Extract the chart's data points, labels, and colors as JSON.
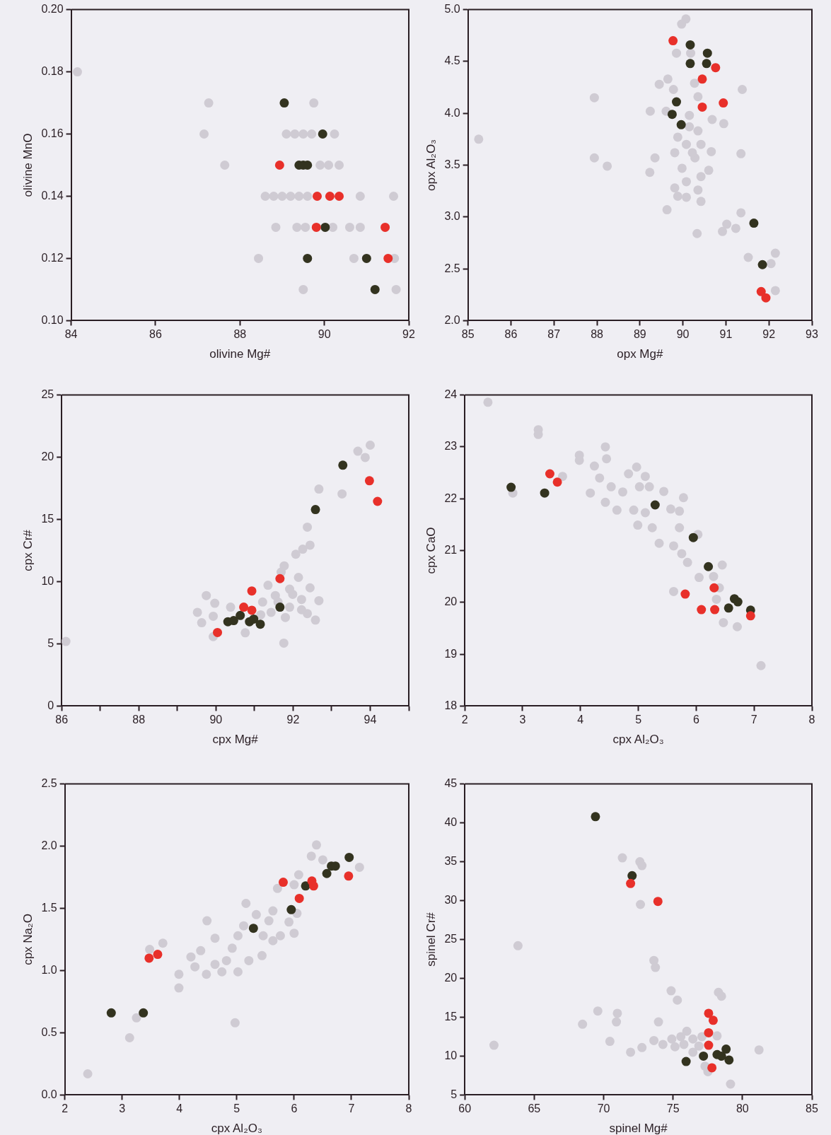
{
  "chart_data": [
    {
      "type": "scatter",
      "xlabel": "olivine Mg#",
      "ylabel": "olivine MnO",
      "xlim": [
        84,
        92
      ],
      "ylim": [
        0.1,
        0.2
      ],
      "xticks": [
        84,
        86,
        88,
        90,
        92
      ],
      "yticks": [
        {
          "value": 0.1,
          "label": "0.10"
        },
        {
          "value": 0.12,
          "label": "0.12"
        },
        {
          "value": 0.14,
          "label": "0.14"
        },
        {
          "value": 0.16,
          "label": "0.16"
        },
        {
          "value": 0.18,
          "label": "0.18"
        },
        {
          "value": 0.2,
          "label": "0.20"
        }
      ],
      "marker": "circle",
      "grid": false,
      "legend": false,
      "series": [
        {
          "color": "#cfcbd3",
          "x": [
            84.15,
            87.26,
            89.75,
            87.15,
            89.1,
            89.3,
            89.5,
            89.7,
            90.24,
            87.64,
            89.9,
            90.1,
            90.35,
            88.6,
            88.8,
            89.0,
            89.2,
            89.4,
            89.6,
            90.85,
            91.64,
            88.85,
            89.35,
            89.55,
            90.2,
            90.6,
            90.85,
            88.44,
            90.7,
            91.66,
            89.5,
            91.7
          ],
          "values": [
            0.18,
            0.17,
            0.17,
            0.16,
            0.16,
            0.16,
            0.16,
            0.16,
            0.16,
            0.15,
            0.15,
            0.15,
            0.15,
            0.14,
            0.14,
            0.14,
            0.14,
            0.14,
            0.14,
            0.14,
            0.14,
            0.13,
            0.13,
            0.13,
            0.13,
            0.13,
            0.13,
            0.12,
            0.12,
            0.12,
            0.11,
            0.11
          ]
        },
        {
          "color": "#33331f",
          "x": [
            89.05,
            89.96,
            89.4,
            89.5,
            89.6,
            90.02,
            89.6,
            91.0,
            91.2
          ],
          "values": [
            0.17,
            0.16,
            0.15,
            0.15,
            0.15,
            0.13,
            0.12,
            0.12,
            0.11
          ]
        },
        {
          "color": "#e8302a",
          "x": [
            88.94,
            89.83,
            90.13,
            90.35,
            89.81,
            91.44,
            91.51
          ],
          "values": [
            0.15,
            0.14,
            0.14,
            0.14,
            0.13,
            0.13,
            0.12
          ]
        }
      ]
    },
    {
      "type": "scatter",
      "xlabel": "opx Mg#",
      "ylabel": "opx Al₂O₃",
      "xlim": [
        85,
        93
      ],
      "ylim": [
        2,
        5
      ],
      "xticks": [
        85,
        86,
        87,
        88,
        89,
        90,
        91,
        92,
        93
      ],
      "yticks": [
        {
          "value": 2,
          "label": "2.0"
        },
        {
          "value": 2.5,
          "label": "2.5"
        },
        {
          "value": 3,
          "label": "3.0"
        },
        {
          "value": 3.5,
          "label": "3.5"
        },
        {
          "value": 4,
          "label": "4.0"
        },
        {
          "value": 4.5,
          "label": "4.5"
        },
        {
          "value": 5,
          "label": "5.0"
        }
      ],
      "marker": "circle",
      "grid": false,
      "legend": false,
      "series": [
        {
          "color": "#cfcbd3",
          "x": [
            90.07,
            89.97,
            89.85,
            90.18,
            89.65,
            89.45,
            89.78,
            90.27,
            91.38,
            87.94,
            90.35,
            89.24,
            89.61,
            90.15,
            90.68,
            90.95,
            89.88,
            90.35,
            85.25,
            90.08,
            90.42,
            89.81,
            90.66,
            91.35,
            90.28,
            87.94,
            89.35,
            88.24,
            89.98,
            90.6,
            89.23,
            90.42,
            90.08,
            89.81,
            90.35,
            89.88,
            90.08,
            90.42,
            89.63,
            91.35,
            91.02,
            91.23,
            90.92,
            90.33,
            91.52,
            92.15,
            92.05,
            92.15,
            90.22,
            90.15
          ],
          "values": [
            4.91,
            4.86,
            4.58,
            4.58,
            4.33,
            4.28,
            4.23,
            4.29,
            4.23,
            4.15,
            4.16,
            4.02,
            4.02,
            3.98,
            3.94,
            3.9,
            3.77,
            3.83,
            3.75,
            3.7,
            3.7,
            3.62,
            3.63,
            3.61,
            3.57,
            3.57,
            3.57,
            3.49,
            3.47,
            3.45,
            3.43,
            3.39,
            3.34,
            3.28,
            3.26,
            3.2,
            3.19,
            3.15,
            3.07,
            3.04,
            2.93,
            2.89,
            2.86,
            2.84,
            2.61,
            2.65,
            2.55,
            2.29,
            3.62,
            3.87
          ]
        },
        {
          "color": "#33331f",
          "x": [
            90.17,
            90.57,
            90.17,
            90.55,
            89.85,
            89.75,
            89.96,
            91.65,
            91.85
          ],
          "values": [
            4.66,
            4.58,
            4.48,
            4.48,
            4.11,
            3.99,
            3.89,
            2.94,
            2.54
          ]
        },
        {
          "color": "#e8302a",
          "x": [
            89.77,
            90.76,
            90.45,
            90.45,
            90.94,
            91.82,
            91.93
          ],
          "values": [
            4.7,
            4.44,
            4.33,
            4.06,
            4.1,
            2.28,
            2.22
          ]
        }
      ]
    },
    {
      "type": "scatter",
      "xlabel": "cpx Mg#",
      "ylabel": "cpx Cr#",
      "xlim": [
        86,
        95
      ],
      "ylim": [
        0,
        25
      ],
      "xticks": [
        86,
        {
          "value": 87,
          "label": null
        },
        88,
        {
          "value": 89,
          "label": null
        },
        90,
        {
          "value": 91,
          "label": null
        },
        92,
        {
          "value": 93,
          "label": null
        },
        94,
        {
          "value": 95,
          "label": null
        }
      ],
      "yticks": [
        0,
        5,
        10,
        15,
        20,
        25
      ],
      "marker": "circle",
      "grid": false,
      "legend": false,
      "series": [
        {
          "color": "#cfcbd3",
          "x": [
            86.11,
            94.0,
            93.68,
            93.87,
            93.27,
            92.67,
            92.37,
            92.44,
            92.25,
            92.07,
            91.77,
            91.69,
            92.14,
            91.35,
            91.91,
            92.44,
            91.54,
            91.99,
            92.22,
            92.67,
            89.75,
            89.97,
            89.52,
            89.93,
            89.63,
            90.38,
            91.21,
            91.43,
            91.8,
            92.58,
            92.37,
            90.76,
            89.93,
            91.76,
            91.91,
            92.22,
            91.61,
            91.16
          ],
          "values": [
            5.19,
            20.97,
            20.48,
            19.98,
            17.05,
            17.44,
            14.38,
            12.93,
            12.61,
            12.2,
            11.27,
            10.76,
            10.34,
            9.71,
            9.4,
            9.5,
            8.88,
            8.98,
            8.57,
            8.47,
            8.88,
            8.26,
            7.53,
            7.22,
            6.7,
            7.95,
            8.36,
            7.53,
            7.12,
            6.91,
            7.43,
            5.89,
            5.58,
            5.06,
            7.95,
            7.74,
            8.36,
            7.33
          ]
        },
        {
          "color": "#33331f",
          "x": [
            93.29,
            92.58,
            91.66,
            90.31,
            90.46,
            90.63,
            90.87,
            90.98,
            91.15
          ],
          "values": [
            19.36,
            15.79,
            7.95,
            6.78,
            6.87,
            7.28,
            6.78,
            6.99,
            6.58
          ]
        },
        {
          "color": "#e8302a",
          "x": [
            93.98,
            94.19,
            91.66,
            90.93,
            90.72,
            90.93,
            90.04
          ],
          "values": [
            18.11,
            16.45,
            10.24,
            9.25,
            7.95,
            7.7,
            5.91
          ]
        }
      ]
    },
    {
      "type": "scatter",
      "xlabel": "cpx Al₂O₃",
      "ylabel": "cpx CaO",
      "xlim": [
        2,
        8
      ],
      "ylim": [
        18,
        24
      ],
      "xticks": [
        2,
        3,
        4,
        5,
        6,
        7,
        8
      ],
      "yticks": [
        18,
        19,
        20,
        21,
        22,
        23,
        24
      ],
      "marker": "circle",
      "grid": false,
      "legend": false,
      "series": [
        {
          "color": "#cfcbd3",
          "x": [
            2.4,
            3.27,
            3.27,
            4.43,
            3.98,
            3.98,
            4.45,
            4.24,
            4.97,
            3.69,
            2.83,
            4.17,
            4.33,
            5.12,
            4.83,
            4.53,
            4.73,
            5.02,
            5.19,
            5.44,
            5.78,
            4.43,
            4.63,
            4.92,
            5.12,
            5.56,
            5.71,
            4.99,
            5.24,
            5.71,
            5.36,
            5.61,
            5.75,
            6.03,
            5.85,
            6.45,
            6.05,
            6.3,
            5.61,
            6.4,
            6.35,
            6.47,
            6.71,
            7.12
          ],
          "values": [
            23.86,
            23.33,
            23.24,
            23.0,
            22.84,
            22.74,
            22.77,
            22.63,
            22.61,
            22.43,
            22.11,
            22.11,
            22.4,
            22.43,
            22.48,
            22.23,
            22.13,
            22.23,
            22.23,
            22.14,
            22.02,
            21.93,
            21.78,
            21.78,
            21.73,
            21.8,
            21.76,
            21.49,
            21.44,
            21.44,
            21.14,
            21.09,
            20.94,
            21.31,
            20.77,
            20.72,
            20.48,
            20.5,
            20.21,
            20.28,
            20.06,
            19.61,
            19.53,
            18.78
          ]
        },
        {
          "color": "#33331f",
          "x": [
            2.8,
            3.38,
            5.29,
            5.95,
            6.21,
            6.66,
            6.72,
            6.56,
            6.94
          ],
          "values": [
            22.22,
            22.11,
            21.88,
            21.25,
            20.69,
            20.07,
            20.01,
            19.89,
            19.85
          ]
        },
        {
          "color": "#e8302a",
          "x": [
            3.47,
            3.6,
            5.81,
            6.31,
            6.09,
            6.32,
            6.94
          ],
          "values": [
            22.48,
            22.32,
            20.16,
            20.28,
            19.86,
            19.86,
            19.74
          ]
        }
      ]
    },
    {
      "type": "scatter",
      "xlabel": "cpx Al₂O₃",
      "ylabel": "cpx Na₂O",
      "xlim": [
        2,
        8
      ],
      "ylim": [
        0,
        2.5
      ],
      "xticks": [
        2,
        3,
        4,
        5,
        6,
        7,
        8
      ],
      "yticks": [
        {
          "value": 0,
          "label": "0.0"
        },
        {
          "value": 0.5,
          "label": "0.5"
        },
        {
          "value": 1,
          "label": "1.0"
        },
        {
          "value": 1.5,
          "label": "1.5"
        },
        {
          "value": 2,
          "label": "2.0"
        },
        {
          "value": 2.5,
          "label": "2.5"
        }
      ],
      "marker": "circle",
      "grid": false,
      "legend": false,
      "series": [
        {
          "color": "#cfcbd3",
          "x": [
            2.4,
            3.13,
            3.25,
            3.71,
            3.48,
            3.99,
            3.99,
            4.48,
            4.62,
            4.2,
            4.37,
            4.27,
            4.47,
            4.62,
            4.82,
            4.74,
            4.92,
            5.02,
            5.12,
            5.16,
            5.02,
            5.21,
            5.34,
            5.46,
            5.56,
            5.44,
            5.63,
            5.76,
            5.63,
            6.0,
            4.97,
            5.71,
            6.0,
            6.08,
            6.39,
            6.3,
            6.5,
            7.14,
            5.91,
            6.05
          ],
          "values": [
            0.17,
            0.46,
            0.62,
            1.22,
            1.17,
            0.97,
            0.86,
            1.4,
            1.26,
            1.11,
            1.16,
            1.03,
            0.97,
            1.05,
            1.08,
            0.99,
            1.18,
            1.28,
            1.36,
            1.54,
            0.99,
            1.08,
            1.45,
            1.28,
            1.4,
            1.12,
            1.24,
            1.28,
            1.48,
            1.3,
            0.58,
            1.66,
            1.69,
            1.77,
            2.01,
            1.92,
            1.89,
            1.83,
            1.39,
            1.46
          ]
        },
        {
          "color": "#33331f",
          "x": [
            2.81,
            3.37,
            5.29,
            5.95,
            6.2,
            6.57,
            6.65,
            6.72,
            6.96
          ],
          "values": [
            0.66,
            0.66,
            1.34,
            1.49,
            1.68,
            1.78,
            1.84,
            1.84,
            1.91
          ]
        },
        {
          "color": "#e8302a",
          "x": [
            3.47,
            3.62,
            5.81,
            6.09,
            6.31,
            6.34,
            6.95
          ],
          "values": [
            1.1,
            1.13,
            1.71,
            1.58,
            1.72,
            1.68,
            1.76
          ]
        }
      ]
    },
    {
      "type": "scatter",
      "xlabel": "spinel Mg#",
      "ylabel": "spinel Cr#",
      "xlim": [
        60,
        85
      ],
      "ylim": [
        5,
        45
      ],
      "xticks": [
        60,
        65,
        70,
        75,
        80,
        85
      ],
      "yticks": [
        5,
        10,
        15,
        20,
        25,
        30,
        35,
        40,
        45
      ],
      "marker": "circle",
      "grid": false,
      "legend": false,
      "series": [
        {
          "color": "#cfcbd3",
          "x": [
            71.35,
            72.61,
            72.76,
            72.65,
            63.83,
            73.62,
            73.73,
            74.86,
            75.31,
            78.27,
            78.49,
            69.58,
            70.99,
            70.92,
            68.48,
            73.95,
            70.45,
            62.1,
            71.94,
            72.76,
            73.62,
            74.27,
            74.91,
            75.56,
            75.99,
            76.43,
            75.78,
            76.86,
            77.08,
            78.17,
            81.19,
            79.14,
            77.51,
            77.3,
            76.43,
            75.14
          ],
          "values": [
            35.5,
            35.0,
            34.5,
            29.5,
            24.2,
            22.3,
            21.4,
            18.4,
            17.2,
            18.2,
            17.7,
            15.8,
            15.5,
            14.4,
            14.1,
            14.4,
            11.9,
            11.4,
            10.5,
            11.1,
            12.0,
            11.5,
            12.2,
            12.5,
            13.2,
            12.2,
            11.5,
            11.3,
            12.5,
            12.6,
            10.8,
            6.4,
            8.0,
            8.7,
            10.5,
            11.2
          ]
        },
        {
          "color": "#33331f",
          "x": [
            69.41,
            72.05,
            75.94,
            77.19,
            78.17,
            78.82,
            78.49,
            79.03
          ],
          "values": [
            40.8,
            33.2,
            9.3,
            10.0,
            10.2,
            10.9,
            10.0,
            9.5
          ]
        },
        {
          "color": "#e8302a",
          "x": [
            71.94,
            73.91,
            77.56,
            77.89,
            77.56,
            77.56,
            77.8
          ],
          "values": [
            32.2,
            29.9,
            15.5,
            14.6,
            13.0,
            11.4,
            8.5
          ]
        }
      ]
    }
  ]
}
